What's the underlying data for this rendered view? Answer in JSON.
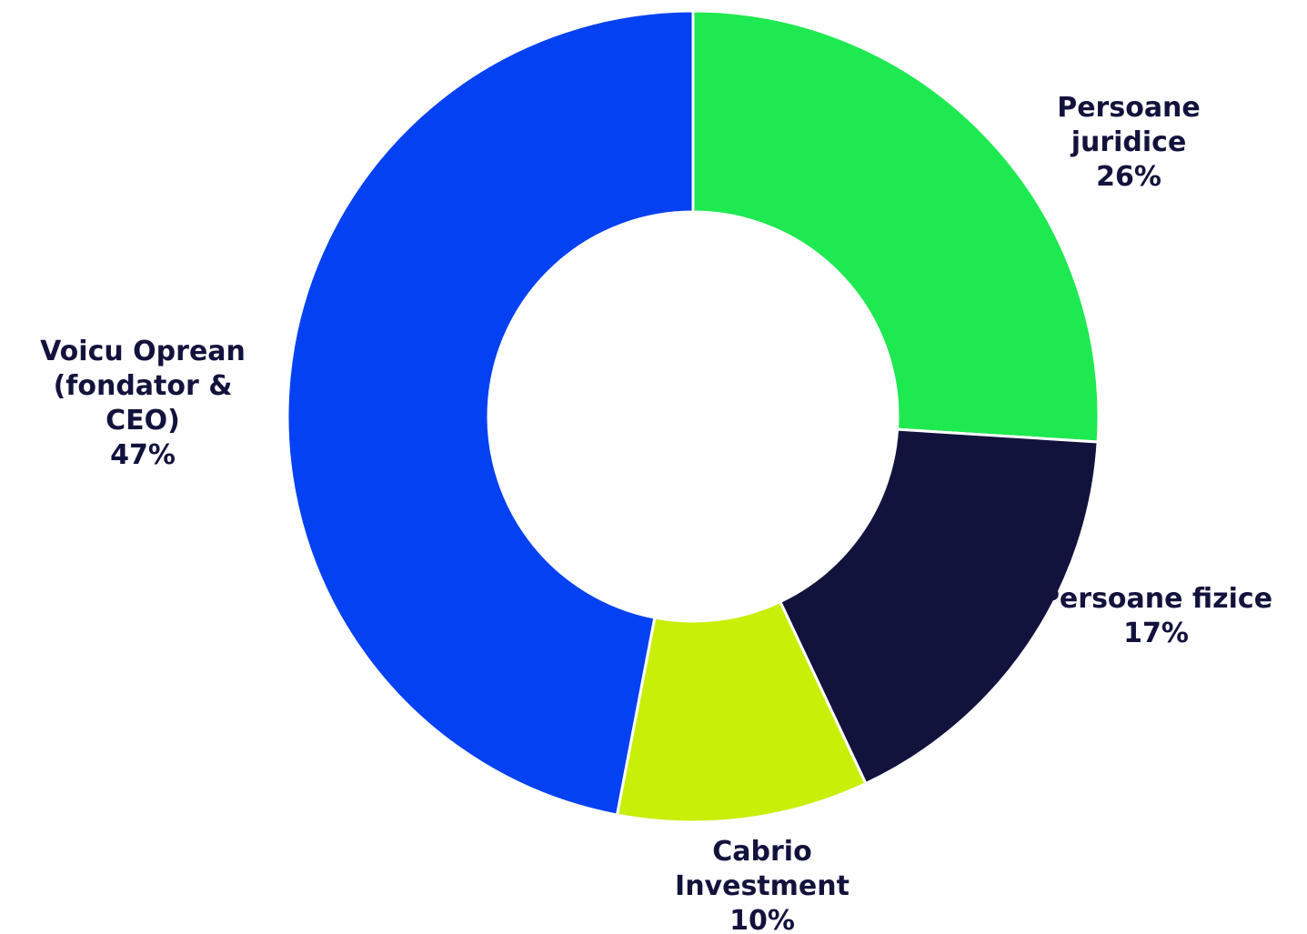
{
  "chart_data": {
    "type": "pie",
    "variant": "donut",
    "title": "",
    "slices": [
      {
        "name_lines": [
          "Persoane",
          "juridice"
        ],
        "value": 26,
        "pct_label": "26%",
        "color": "#1ee951"
      },
      {
        "name_lines": [
          "Persoane fizice"
        ],
        "value": 17,
        "pct_label": "17%",
        "color": "#12133d"
      },
      {
        "name_lines": [
          "Cabrio",
          "Investment"
        ],
        "value": 10,
        "pct_label": "10%",
        "color": "#c8ef08"
      },
      {
        "name_lines": [
          "Voicu Oprean",
          "(fondator &",
          "CEO)"
        ],
        "value": 47,
        "pct_label": "47%",
        "color": "#0441f2"
      }
    ],
    "legend": "none",
    "label_color": "#12133d"
  }
}
